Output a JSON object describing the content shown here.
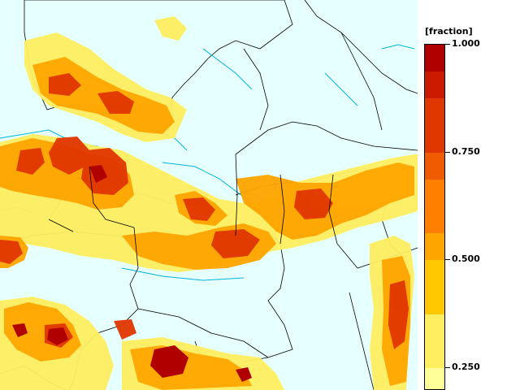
{
  "legend": {
    "title": "[fraction]",
    "ticks": [
      {
        "label": "1.000",
        "value": 1.0
      },
      {
        "label": "0.750",
        "value": 0.75
      },
      {
        "label": "0.500",
        "value": 0.5
      },
      {
        "label": "0.250",
        "value": 0.25
      }
    ],
    "bands": [
      {
        "from": 0.9375,
        "to": 1.0,
        "color": "#b00000"
      },
      {
        "from": 0.875,
        "to": 0.9375,
        "color": "#cc1a00"
      },
      {
        "from": 0.75,
        "to": 0.875,
        "color": "#e03600"
      },
      {
        "from": 0.6875,
        "to": 0.75,
        "color": "#f05a00"
      },
      {
        "from": 0.5625,
        "to": 0.6875,
        "color": "#ff8000"
      },
      {
        "from": 0.5,
        "to": 0.5625,
        "color": "#ffa500"
      },
      {
        "from": 0.375,
        "to": 0.5,
        "color": "#ffc800"
      },
      {
        "from": 0.25,
        "to": 0.375,
        "color": "#ffee60"
      },
      {
        "from": 0.2,
        "to": 0.25,
        "color": "#ffff99"
      }
    ]
  },
  "colors": {
    "background": "#e6ffff",
    "coast": "#00b4d8",
    "border": "#000000"
  }
}
